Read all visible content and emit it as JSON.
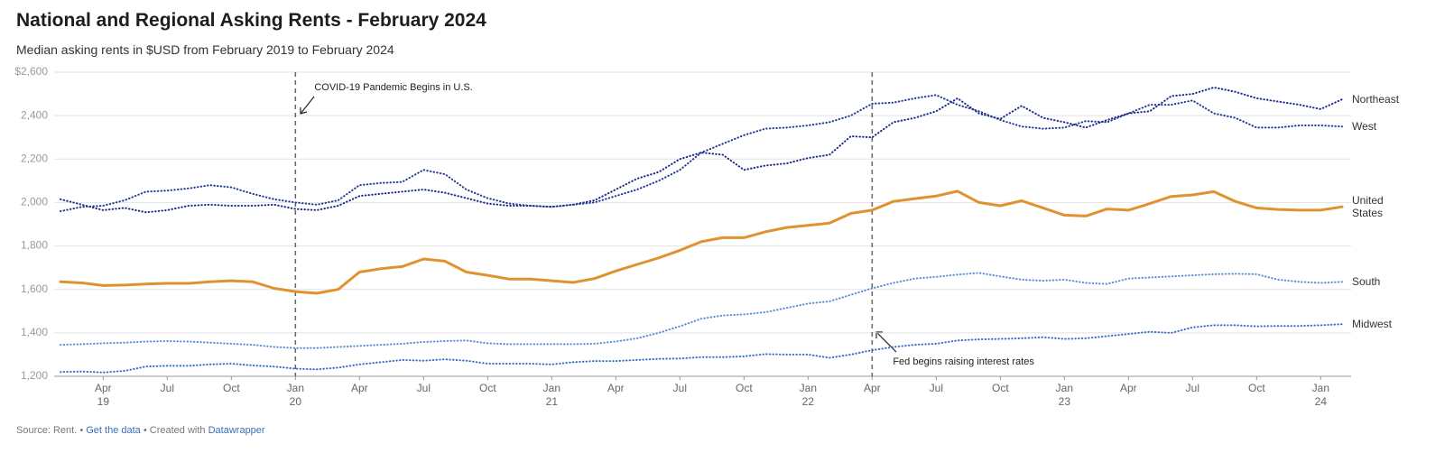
{
  "chart_data": {
    "type": "line",
    "title": "National and Regional Asking Rents - February 2024",
    "subtitle": "Median asking rents in $USD from February 2019 to February 2024",
    "x": [
      "2019-02",
      "2019-03",
      "2019-04",
      "2019-05",
      "2019-06",
      "2019-07",
      "2019-08",
      "2019-09",
      "2019-10",
      "2019-11",
      "2019-12",
      "2020-01",
      "2020-02",
      "2020-03",
      "2020-04",
      "2020-05",
      "2020-06",
      "2020-07",
      "2020-08",
      "2020-09",
      "2020-10",
      "2020-11",
      "2020-12",
      "2021-01",
      "2021-02",
      "2021-03",
      "2021-04",
      "2021-05",
      "2021-06",
      "2021-07",
      "2021-08",
      "2021-09",
      "2021-10",
      "2021-11",
      "2021-12",
      "2022-01",
      "2022-02",
      "2022-03",
      "2022-04",
      "2022-05",
      "2022-06",
      "2022-07",
      "2022-08",
      "2022-09",
      "2022-10",
      "2022-11",
      "2022-12",
      "2023-01",
      "2023-02",
      "2023-03",
      "2023-04",
      "2023-05",
      "2023-06",
      "2023-07",
      "2023-08",
      "2023-09",
      "2023-10",
      "2023-11",
      "2023-12",
      "2024-01",
      "2024-02"
    ],
    "series": [
      {
        "name": "Northeast",
        "color": "#1b2a8a",
        "style": "dotted",
        "values": [
          2015,
          1990,
          1965,
          1975,
          1955,
          1965,
          1985,
          1990,
          1985,
          1985,
          1990,
          1970,
          1965,
          1985,
          2030,
          2040,
          2050,
          2060,
          2045,
          2020,
          1995,
          1985,
          1985,
          1980,
          1990,
          2010,
          2060,
          2110,
          2140,
          2200,
          2230,
          2220,
          2150,
          2170,
          2180,
          2205,
          2220,
          2305,
          2300,
          2370,
          2390,
          2420,
          2480,
          2410,
          2385,
          2445,
          2390,
          2370,
          2345,
          2380,
          2410,
          2420,
          2490,
          2500,
          2530,
          2510,
          2480,
          2465,
          2450,
          2430,
          2475
        ]
      },
      {
        "name": "West",
        "color": "#233a93",
        "style": "dotted",
        "values": [
          1960,
          1980,
          1985,
          2010,
          2050,
          2055,
          2065,
          2080,
          2070,
          2040,
          2015,
          2000,
          1990,
          2010,
          2080,
          2090,
          2095,
          2150,
          2130,
          2060,
          2020,
          1995,
          1985,
          1980,
          1990,
          2000,
          2030,
          2060,
          2100,
          2150,
          2230,
          2270,
          2310,
          2340,
          2345,
          2355,
          2370,
          2400,
          2455,
          2460,
          2480,
          2495,
          2450,
          2420,
          2380,
          2350,
          2340,
          2345,
          2375,
          2370,
          2410,
          2450,
          2450,
          2470,
          2410,
          2390,
          2345,
          2345,
          2355,
          2355,
          2350
        ]
      },
      {
        "name": "United States",
        "color": "#e0922f",
        "style": "solid",
        "values": [
          1635,
          1630,
          1618,
          1620,
          1625,
          1628,
          1628,
          1635,
          1640,
          1635,
          1605,
          1590,
          1582,
          1600,
          1680,
          1695,
          1705,
          1740,
          1730,
          1680,
          1665,
          1648,
          1648,
          1640,
          1632,
          1650,
          1685,
          1715,
          1745,
          1780,
          1820,
          1838,
          1838,
          1865,
          1885,
          1895,
          1905,
          1950,
          1965,
          2005,
          2018,
          2030,
          2052,
          2000,
          1985,
          2008,
          1975,
          1942,
          1938,
          1970,
          1965,
          1995,
          2028,
          2035,
          2050,
          2005,
          1975,
          1968,
          1965,
          1965,
          1980
        ]
      },
      {
        "name": "South",
        "color": "#5b8fd6",
        "style": "dotted",
        "values": [
          1345,
          1348,
          1352,
          1355,
          1360,
          1362,
          1360,
          1355,
          1350,
          1345,
          1335,
          1330,
          1330,
          1335,
          1340,
          1345,
          1350,
          1358,
          1362,
          1365,
          1352,
          1348,
          1348,
          1348,
          1348,
          1350,
          1360,
          1375,
          1400,
          1430,
          1465,
          1480,
          1485,
          1495,
          1515,
          1535,
          1545,
          1575,
          1605,
          1630,
          1650,
          1658,
          1668,
          1676,
          1660,
          1645,
          1640,
          1645,
          1630,
          1625,
          1650,
          1655,
          1660,
          1665,
          1670,
          1672,
          1670,
          1645,
          1635,
          1630,
          1635
        ]
      },
      {
        "name": "Midwest",
        "color": "#3a6fc9",
        "style": "dotted",
        "values": [
          1220,
          1222,
          1218,
          1225,
          1245,
          1248,
          1248,
          1255,
          1258,
          1250,
          1245,
          1235,
          1232,
          1240,
          1255,
          1265,
          1275,
          1272,
          1278,
          1272,
          1258,
          1258,
          1258,
          1255,
          1265,
          1270,
          1270,
          1275,
          1280,
          1282,
          1288,
          1288,
          1292,
          1302,
          1300,
          1300,
          1285,
          1300,
          1320,
          1335,
          1345,
          1350,
          1365,
          1370,
          1372,
          1375,
          1380,
          1372,
          1375,
          1385,
          1395,
          1405,
          1400,
          1425,
          1435,
          1435,
          1430,
          1432,
          1432,
          1435,
          1440
        ]
      }
    ],
    "ylim": [
      1200,
      2600
    ],
    "yticks": [
      {
        "value": 1200,
        "label": "1,200"
      },
      {
        "value": 1400,
        "label": "1,400"
      },
      {
        "value": 1600,
        "label": "1,600"
      },
      {
        "value": 1800,
        "label": "1,800"
      },
      {
        "value": 2000,
        "label": "2,000"
      },
      {
        "value": 2200,
        "label": "2,200"
      },
      {
        "value": 2400,
        "label": "2,400"
      },
      {
        "value": 2600,
        "label": "$2,600"
      }
    ],
    "xticks": [
      {
        "value": "2019-04",
        "label": "Apr",
        "year": "19"
      },
      {
        "value": "2019-07",
        "label": "Jul"
      },
      {
        "value": "2019-10",
        "label": "Oct"
      },
      {
        "value": "2020-01",
        "label": "Jan",
        "year": "20"
      },
      {
        "value": "2020-04",
        "label": "Apr"
      },
      {
        "value": "2020-07",
        "label": "Jul"
      },
      {
        "value": "2020-10",
        "label": "Oct"
      },
      {
        "value": "2021-01",
        "label": "Jan",
        "year": "21"
      },
      {
        "value": "2021-04",
        "label": "Apr"
      },
      {
        "value": "2021-07",
        "label": "Jul"
      },
      {
        "value": "2021-10",
        "label": "Oct"
      },
      {
        "value": "2022-01",
        "label": "Jan",
        "year": "22"
      },
      {
        "value": "2022-04",
        "label": "Apr"
      },
      {
        "value": "2022-07",
        "label": "Jul"
      },
      {
        "value": "2022-10",
        "label": "Oct"
      },
      {
        "value": "2023-01",
        "label": "Jan",
        "year": "23"
      },
      {
        "value": "2023-04",
        "label": "Apr"
      },
      {
        "value": "2023-07",
        "label": "Jul"
      },
      {
        "value": "2023-10",
        "label": "Oct"
      },
      {
        "value": "2024-01",
        "label": "Jan",
        "year": "24"
      }
    ],
    "grid": true,
    "annotations": [
      {
        "x": "2020-01",
        "text": "COVID-19 Pandemic Begins in U.S."
      },
      {
        "x": "2022-04",
        "text": "Fed begins raising interest rates"
      }
    ],
    "footer": {
      "source": "Source: Rent.",
      "separator": "•",
      "data_link": "Get the data",
      "credit": "Created with",
      "tool": "Datawrapper"
    }
  }
}
